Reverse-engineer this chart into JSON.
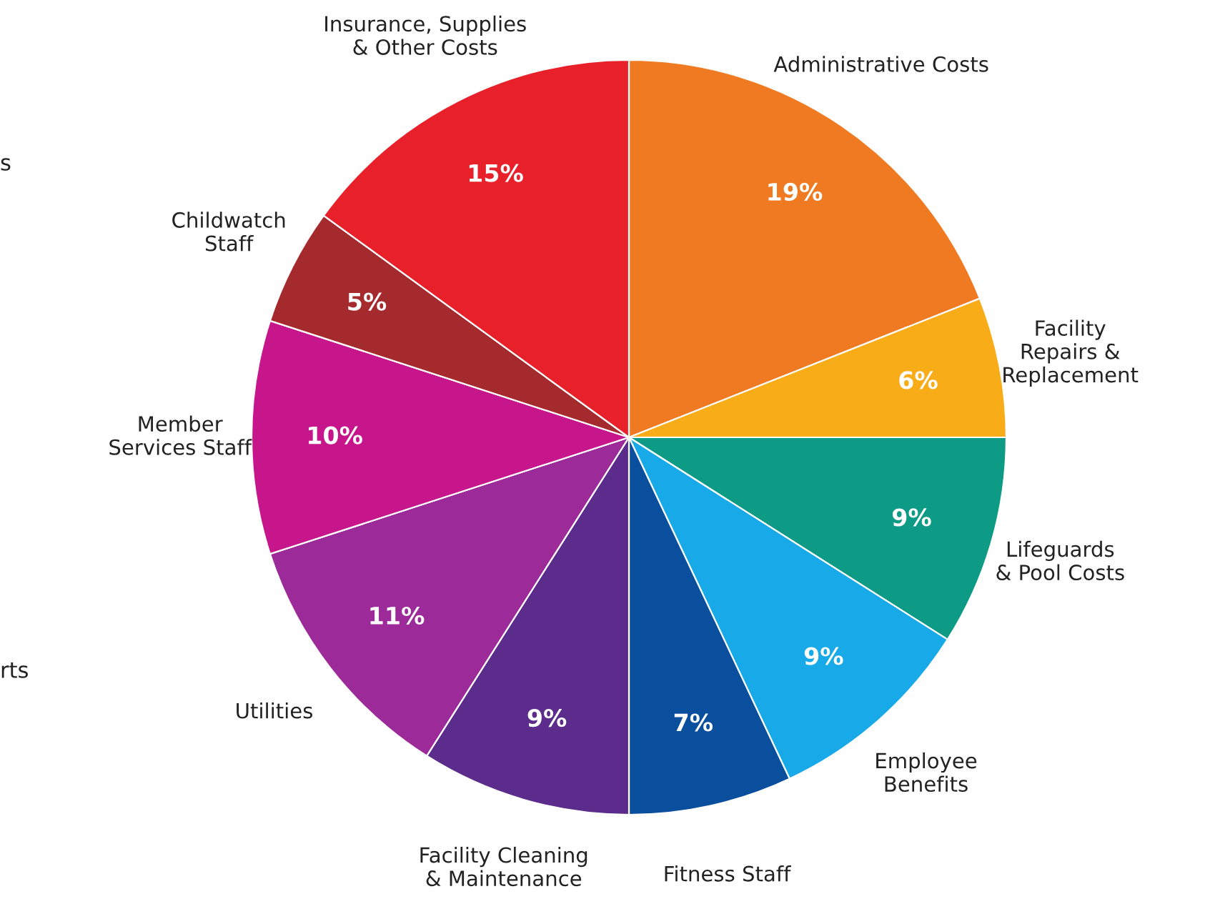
{
  "chart_data": {
    "type": "pie",
    "categories": [
      "Administrative Costs",
      "Facility\nRepairs &\nReplacement",
      "Lifeguards\n& Pool Costs",
      "Employee\nBenefits",
      "Fitness Staff",
      "Facility Cleaning\n& Maintenance",
      "Utilities",
      "Member\nServices Staff",
      "Childwatch\nStaff",
      "Insurance, Supplies\n& Other Costs"
    ],
    "values": [
      19,
      6,
      9,
      9,
      7,
      9,
      11,
      10,
      5,
      15
    ],
    "value_labels": [
      "19%",
      "6%",
      "9%",
      "9%",
      "7%",
      "9%",
      "11%",
      "10%",
      "5%",
      "15%"
    ],
    "colors": [
      "#f07a22",
      "#f8ac18",
      "#0d9b86",
      "#17a9e8",
      "#0a4e9e",
      "#5b2c8c",
      "#9c2a98",
      "#c7168c",
      "#a52a2e",
      "#e8202a"
    ],
    "annotations": [
      "s",
      "rts"
    ],
    "legend": false
  }
}
